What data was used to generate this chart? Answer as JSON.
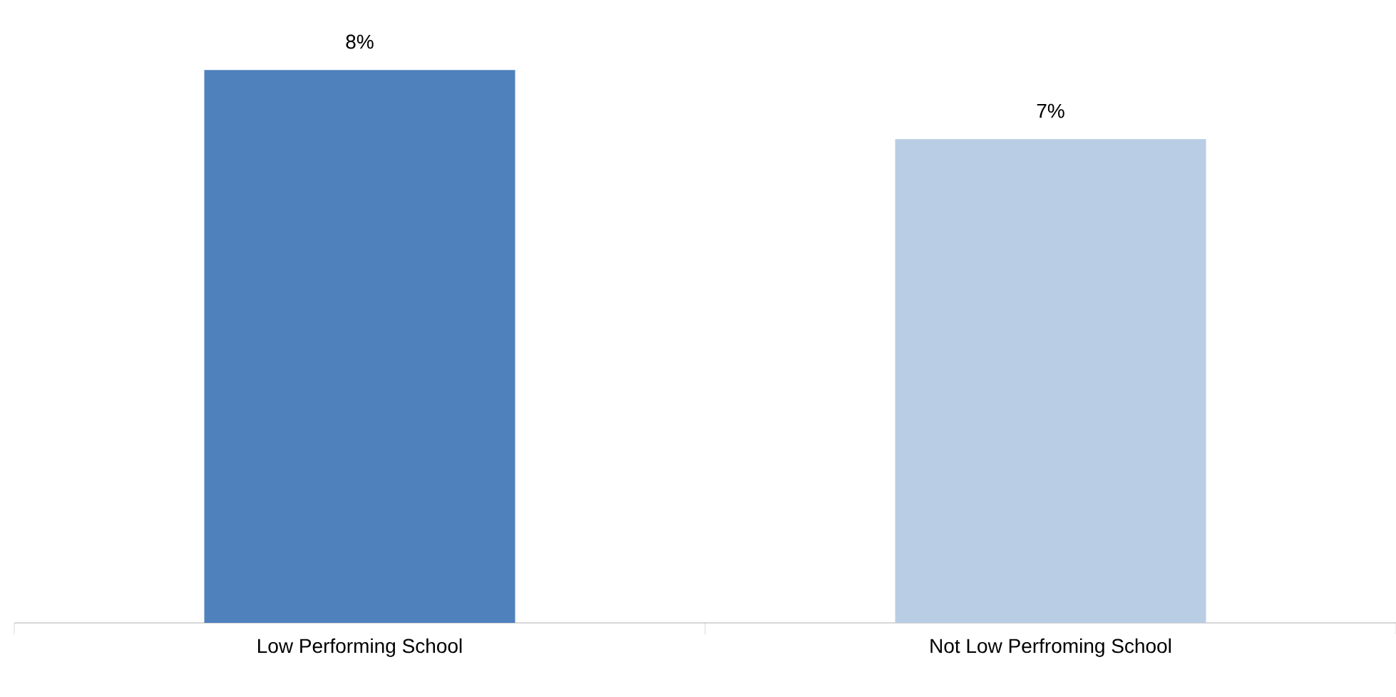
{
  "chart_data": {
    "type": "bar",
    "categories": [
      "Low Performing School",
      "Not Low Perfroming School"
    ],
    "values": [
      8,
      7
    ],
    "colors": [
      "#4f81bd",
      "#b9cde5"
    ],
    "value_labels": [
      "8%",
      "7%"
    ]
  }
}
